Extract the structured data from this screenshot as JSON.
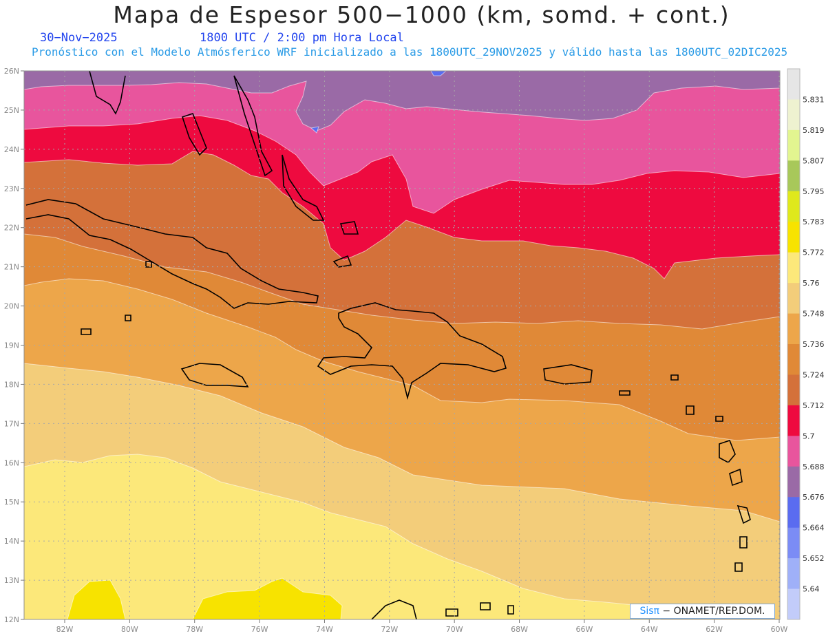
{
  "title": "Mapa de Espesor 500−1000 (km, somd. + cont.)",
  "date": "30−Nov−2025",
  "time": "1800 UTC / 2:00 pm Hora Local",
  "subtitle": "Pronóstico con el Modelo Atmósferico WRF inicializado a las 1800UTC_29NOV2025 y válido hasta las  1800UTC_02DIC2025",
  "credit": {
    "brand": "Sisπ",
    "text": " − ONAMET/REP.DOM."
  },
  "lat_labels": [
    "26N",
    "25N",
    "24N",
    "23N",
    "22N",
    "21N",
    "20N",
    "19N",
    "18N",
    "17N",
    "16N",
    "15N",
    "14N",
    "13N",
    "12N"
  ],
  "lon_labels": [
    "82W",
    "80W",
    "78W",
    "76W",
    "74W",
    "72W",
    "70W",
    "68W",
    "66W",
    "64W",
    "62W",
    "60W"
  ],
  "colorbar": {
    "labels": [
      "5.831",
      "5.819",
      "5.807",
      "5.795",
      "5.783",
      "5.772",
      "5.76",
      "5.748",
      "5.736",
      "5.724",
      "5.712",
      "5.7",
      "5.688",
      "5.676",
      "5.664",
      "5.652",
      "5.64"
    ],
    "colors": [
      "#e6e6e6",
      "#eef2d0",
      "#e2f590",
      "#a8c85a",
      "#dfe81c",
      "#f7e300",
      "#fce87a",
      "#f3cd7a",
      "#eda64a",
      "#e08937",
      "#d4713a",
      "#ee0a3f",
      "#e8559d",
      "#9a6aa6",
      "#5a6cf0",
      "#7b8cf5",
      "#9fb0f8",
      "#c2ccfa"
    ]
  },
  "colors": {
    "band_5664": "#5a6cf0",
    "band_5676": "#9a6aa6",
    "band_5688": "#e8559d",
    "band_5700": "#ee0a3f",
    "band_5712": "#d4713a",
    "band_5724": "#e08937",
    "band_5736": "#eda64a",
    "band_5748": "#f3cd7a",
    "band_5760": "#fce87a",
    "band_5772": "#f7e300",
    "coast": "#000000",
    "grid": "#a8a8a8"
  }
}
